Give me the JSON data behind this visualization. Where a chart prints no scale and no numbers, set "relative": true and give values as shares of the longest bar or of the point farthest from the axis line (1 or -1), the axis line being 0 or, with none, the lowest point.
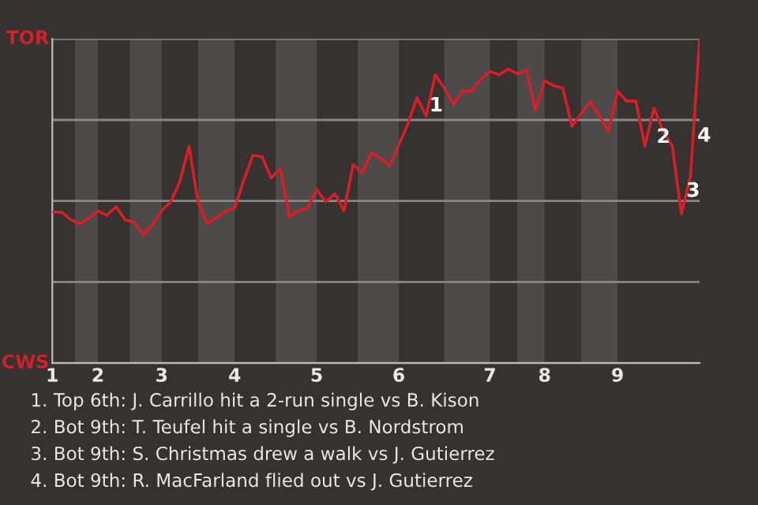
{
  "chart_data": {
    "type": "line",
    "relative": true,
    "categories": [
      "1",
      null,
      null,
      null,
      null,
      "2",
      null,
      null,
      null,
      null,
      null,
      null,
      "3",
      null,
      null,
      null,
      null,
      null,
      null,
      null,
      "4",
      null,
      null,
      null,
      null,
      null,
      null,
      null,
      null,
      "5",
      null,
      null,
      null,
      null,
      null,
      null,
      null,
      null,
      "6",
      null,
      null,
      null,
      null,
      null,
      null,
      null,
      null,
      null,
      "7",
      null,
      null,
      null,
      null,
      null,
      "8",
      null,
      null,
      null,
      null,
      null,
      null,
      null,
      "9",
      null,
      null,
      null,
      null,
      null,
      null,
      null,
      null,
      null
    ],
    "series": [
      {
        "color": "#d81e28",
        "values": [
          0.466,
          0.466,
          0.443,
          0.43,
          0.446,
          0.469,
          0.456,
          0.483,
          0.441,
          0.435,
          0.394,
          0.427,
          0.47,
          0.498,
          0.56,
          0.668,
          0.495,
          0.43,
          0.449,
          0.469,
          0.478,
          0.564,
          0.641,
          0.637,
          0.571,
          0.6,
          0.451,
          0.47,
          0.478,
          0.535,
          0.498,
          0.522,
          0.47,
          0.612,
          0.587,
          0.649,
          0.631,
          0.608,
          0.673,
          0.738,
          0.819,
          0.762,
          0.889,
          0.848,
          0.798,
          0.84,
          0.839,
          0.876,
          0.9,
          0.889,
          0.907,
          0.892,
          0.904,
          0.779,
          0.871,
          0.855,
          0.848,
          0.73,
          0.77,
          0.806,
          0.765,
          0.714,
          0.839,
          0.808,
          0.808,
          0.67,
          0.787,
          0.714,
          0.67,
          0.46,
          0.576,
          1
        ]
      }
    ],
    "grid": "y",
    "marker": "none",
    "line_style": "solid",
    "annotations": [
      "TOR",
      "CWS",
      "1",
      "2",
      "3",
      "4",
      "1. Top 6th: J. Carrillo hit a 2-run single vs B. Kison",
      "2. Bot 9th: T. Teufel hit a single vs B. Nordstrom",
      "3. Bot 9th: S. Christmas drew a walk vs J. Gutierrez",
      "4. Bot 9th: R. MacFarland flied out vs J. Gutierrez"
    ]
  }
}
